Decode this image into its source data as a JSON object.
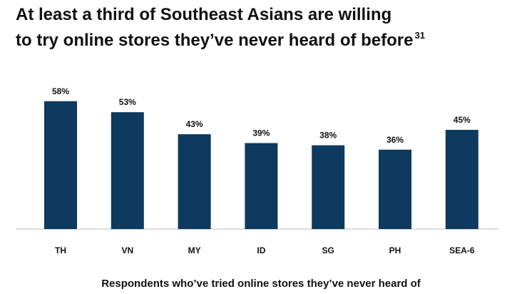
{
  "chart_data": {
    "type": "bar",
    "title": [
      "At least a third of Southeast Asians are willing",
      "to try online stores they’ve never heard of before"
    ],
    "title_footnote": "31",
    "x_label": "Respondents who’ve tried online stores they’ve never heard of",
    "categories": [
      "TH",
      "VN",
      "MY",
      "ID",
      "SG",
      "PH",
      "SEA-6"
    ],
    "values": [
      58,
      53,
      43,
      39,
      38,
      36,
      45
    ],
    "value_labels": [
      "58%",
      "53%",
      "43%",
      "39%",
      "38%",
      "36%",
      "45%"
    ],
    "color": "#0d3a5e"
  }
}
